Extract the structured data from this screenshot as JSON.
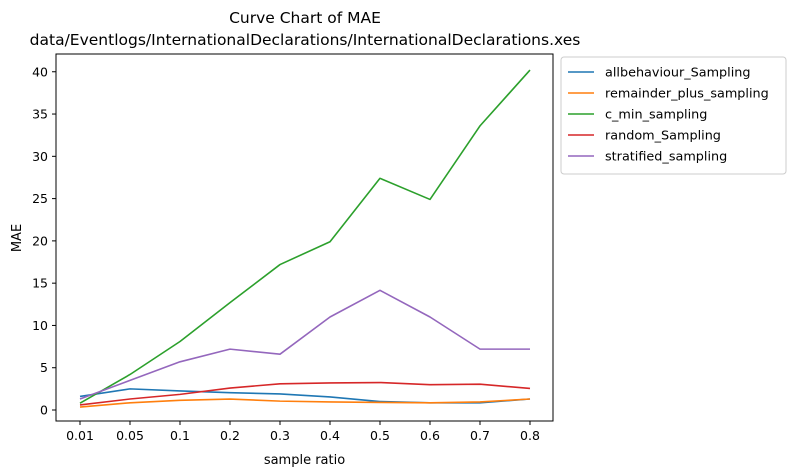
{
  "chart_data": {
    "type": "line",
    "title_line1": "Curve Chart of MAE",
    "title_line2": "data/Eventlogs/InternationalDeclarations/InternationalDeclarations.xes",
    "xlabel": "sample ratio",
    "ylabel": "MAE",
    "categories": [
      "0.01",
      "0.05",
      "0.1",
      "0.2",
      "0.3",
      "0.4",
      "0.5",
      "0.6",
      "0.7",
      "0.8"
    ],
    "yticks": [
      "0",
      "5",
      "10",
      "15",
      "20",
      "25",
      "30",
      "35",
      "40"
    ],
    "ylim": [
      -1.3,
      42.1
    ],
    "legend_position": "outside-top-right",
    "series": [
      {
        "name": "allbehaviour_Sampling",
        "color": "#1f77b4",
        "values": [
          1.6,
          2.5,
          2.25,
          2.05,
          1.9,
          1.55,
          1.0,
          0.85,
          0.85,
          1.3
        ]
      },
      {
        "name": "remainder_plus_sampling",
        "color": "#ff7f0e",
        "values": [
          0.35,
          0.85,
          1.15,
          1.3,
          1.05,
          0.95,
          0.9,
          0.85,
          0.95,
          1.3
        ]
      },
      {
        "name": "c_min_sampling",
        "color": "#2ca02c",
        "values": [
          0.8,
          4.2,
          8.1,
          12.7,
          17.2,
          19.9,
          27.4,
          24.9,
          33.6,
          40.2
        ]
      },
      {
        "name": "random_Sampling",
        "color": "#d62728",
        "values": [
          0.6,
          1.3,
          1.85,
          2.6,
          3.1,
          3.2,
          3.25,
          3.0,
          3.05,
          2.55
        ]
      },
      {
        "name": "stratified_sampling",
        "color": "#9467bd",
        "values": [
          1.3,
          3.5,
          5.7,
          7.2,
          6.6,
          11.0,
          14.15,
          11.0,
          7.2,
          7.2
        ]
      }
    ]
  }
}
